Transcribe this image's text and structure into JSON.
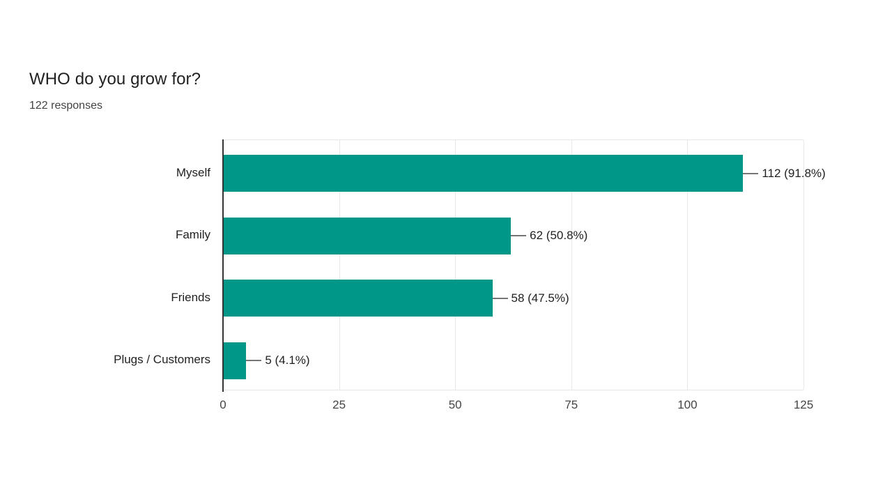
{
  "header": {
    "title": "WHO do you grow for?",
    "responses": "122 responses"
  },
  "chart_data": {
    "type": "bar",
    "orientation": "horizontal",
    "title": "WHO do you grow for?",
    "subtitle": "122 responses",
    "categories": [
      "Myself",
      "Family",
      "Friends",
      "Plugs / Customers"
    ],
    "values": [
      112,
      62,
      58,
      5
    ],
    "value_labels": [
      "112 (91.8%)",
      "62 (50.8%)",
      "58 (47.5%)",
      "5 (4.1%)"
    ],
    "percentages": [
      91.8,
      50.8,
      47.5,
      4.1
    ],
    "xlabel": "",
    "ylabel": "",
    "xlim": [
      0,
      125
    ],
    "xticks": [
      0,
      25,
      50,
      75,
      100,
      125
    ],
    "grid": true,
    "legend": "none"
  },
  "colors": {
    "bar": "#009688",
    "axis_line": "#333333",
    "gridline": "#e8e8e8",
    "leader_line": "#757575",
    "title_text": "#212121",
    "label_text": "#212121",
    "tick_text": "#444444",
    "background": "#ffffff"
  }
}
